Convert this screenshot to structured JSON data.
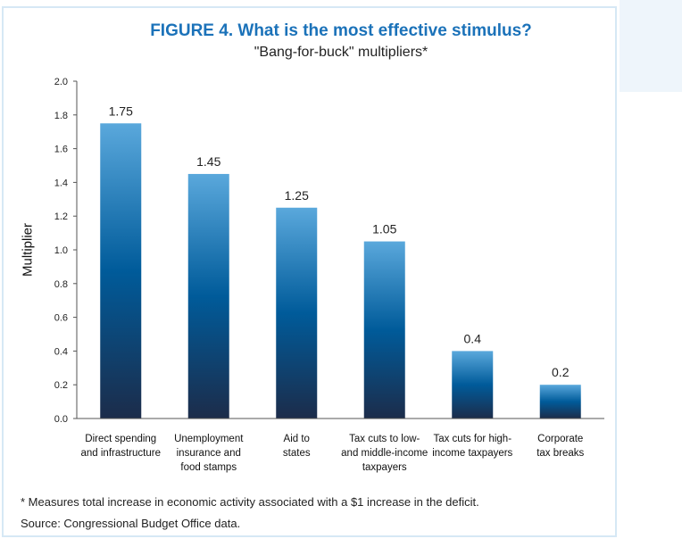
{
  "figure": {
    "title_prefix": "FIGURE 4.",
    "title_text": "What is the most effective stimulus?",
    "subtitle": "\"Bang-for-buck\" multipliers*",
    "footnote": "* Measures total increase in economic activity associated with a $1 increase in the deficit.",
    "source": "Source: Congressional Budget Office data."
  },
  "colors": {
    "title": "#1b72b9",
    "bar_top": "#5aa8dc",
    "bar_mid": "#005b9a",
    "bar_bottom": "#1c2c4a"
  },
  "chart_data": {
    "type": "bar",
    "title": "FIGURE 4. What is the most effective stimulus?",
    "subtitle": "\"Bang-for-buck\" multipliers*",
    "xlabel": "",
    "ylabel": "Multiplier",
    "ylim": [
      0,
      2.0
    ],
    "yticks": [
      "0.0",
      "0.2",
      "0.4",
      "0.6",
      "0.8",
      "1.0",
      "1.2",
      "1.4",
      "1.6",
      "1.8",
      "2.0"
    ],
    "grid": false,
    "categories": [
      [
        "Direct spending",
        "and infrastructure"
      ],
      [
        "Unemployment",
        "insurance and",
        "food stamps"
      ],
      [
        "Aid to",
        "states"
      ],
      [
        "Tax cuts to low-",
        "and middle-income",
        "taxpayers"
      ],
      [
        "Tax cuts for high-",
        "income taxpayers"
      ],
      [
        "Corporate",
        "tax breaks"
      ]
    ],
    "values": [
      1.75,
      1.45,
      1.25,
      1.05,
      0.4,
      0.2
    ],
    "value_labels": [
      "1.75",
      "1.45",
      "1.25",
      "1.05",
      "0.4",
      "0.2"
    ]
  }
}
